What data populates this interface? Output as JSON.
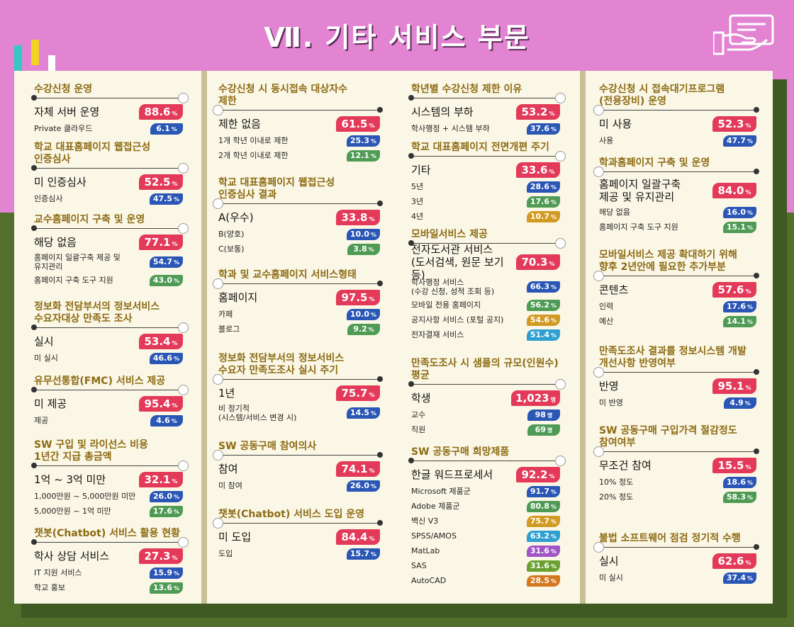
{
  "header": {
    "title": "Ⅶ. 기타 서비스 부문"
  },
  "columns": [
    {
      "sections": [
        {
          "title": "수강신청 운영",
          "top": 18,
          "rows": [
            {
              "label": "자체 서버 운영",
              "value": "88.6",
              "color": "red",
              "main": true
            },
            {
              "label": "Private 클라우드",
              "value": "6.1",
              "color": "blue"
            }
          ]
        },
        {
          "title": "학교 대표홈페이지 웹접근성\n인증심사",
          "top": 100,
          "rows": [
            {
              "label": "미 인증심사",
              "value": "52.5",
              "color": "red",
              "main": true
            },
            {
              "label": "인증심사",
              "value": "47.5",
              "color": "blue"
            }
          ]
        },
        {
          "title": "교수홈페이지 구축 및 운영",
          "top": 202,
          "rows": [
            {
              "label": "해당 없음",
              "value": "77.1",
              "color": "red",
              "main": true
            },
            {
              "label": "홈페이지 일괄구축 제공 및\n유지관리",
              "value": "54.7",
              "color": "blue"
            },
            {
              "label": "홈페이지 구축 도구 지원",
              "value": "43.0",
              "color": "green"
            }
          ]
        },
        {
          "title": "정보화 전담부서의 정보서비스\n수요자대상 만족도 조사",
          "top": 325,
          "rows": [
            {
              "label": "실시",
              "value": "53.4",
              "color": "red",
              "main": true
            },
            {
              "label": "미 실시",
              "value": "46.6",
              "color": "blue"
            }
          ]
        },
        {
          "title": "유무선통합(FMC) 서비스 제공",
          "top": 430,
          "rows": [
            {
              "label": "미 제공",
              "value": "95.4",
              "color": "red",
              "main": true
            },
            {
              "label": "제공",
              "value": "4.6",
              "color": "blue"
            }
          ]
        },
        {
          "title": "SW 구입 및 라이선스 비용\n1년간 지급 총금액",
          "top": 520,
          "rows": [
            {
              "label": "1억 ~ 3억 미만",
              "value": "32.1",
              "color": "red",
              "main": true
            },
            {
              "label": "1,000만원 ~ 5,000만원 미만",
              "value": "26.0",
              "color": "blue"
            },
            {
              "label": "5,000만원 ~ 1억 미만",
              "value": "17.6",
              "color": "green"
            }
          ]
        },
        {
          "title": "챗봇(Chatbot) 서비스 활용 현황",
          "top": 645,
          "rows": [
            {
              "label": "학사 상담 서비스",
              "value": "27.3",
              "color": "red",
              "main": true
            },
            {
              "label": "IT 지원 서비스",
              "value": "15.9",
              "color": "blue"
            },
            {
              "label": "학교 홍보",
              "value": "13.6",
              "color": "green"
            }
          ]
        }
      ]
    },
    {
      "sections": [
        {
          "title": "수강신청 시 동시접속 대상자수\n제한",
          "top": 18,
          "rows": [
            {
              "label": "제한 없음",
              "value": "61.5",
              "color": "red",
              "main": true
            },
            {
              "label": "1개 학년 이내로 제한",
              "value": "25.3",
              "color": "blue"
            },
            {
              "label": "2개 학년 이내로 제한",
              "value": "12.1",
              "color": "green"
            }
          ]
        },
        {
          "title": "학교 대표홈페이지 웹접근성\n인증심사 결과",
          "top": 150,
          "rows": [
            {
              "label": "A(우수)",
              "value": "33.8",
              "color": "red",
              "main": true
            },
            {
              "label": "B(양호)",
              "value": "10.0",
              "color": "blue"
            },
            {
              "label": "C(보통)",
              "value": "3.8",
              "color": "green"
            }
          ]
        },
        {
          "title": "학과 및 교수홈페이지 서비스형태",
          "top": 280,
          "rows": [
            {
              "label": "홈페이지",
              "value": "97.5",
              "color": "red",
              "main": true
            },
            {
              "label": "카페",
              "value": "10.0",
              "color": "blue"
            },
            {
              "label": "블로그",
              "value": "9.2",
              "color": "green"
            }
          ]
        },
        {
          "title": "정보화 전담부서의 정보서비스\n수요자 만족도조사 실시 주기",
          "top": 398,
          "rows": [
            {
              "label": "1년",
              "value": "75.7",
              "color": "red",
              "main": true
            },
            {
              "label": "비 정기적\n(시스템/서비스 변경 시)",
              "value": "14.5",
              "color": "blue"
            }
          ]
        },
        {
          "title": "SW 공동구매 참여의사",
          "top": 522,
          "rows": [
            {
              "label": "참여",
              "value": "74.1",
              "color": "red",
              "main": true
            },
            {
              "label": "미 참여",
              "value": "26.0",
              "color": "blue"
            }
          ]
        },
        {
          "title": "챗봇(Chatbot) 서비스 도입 운영",
          "top": 618,
          "rows": [
            {
              "label": "미 도입",
              "value": "84.4",
              "color": "red",
              "main": true
            },
            {
              "label": "도입",
              "value": "15.7",
              "color": "blue"
            }
          ]
        }
      ]
    },
    {
      "sections": [
        {
          "title": "학년별 수강신청 제한 이유",
          "top": 18,
          "rows": [
            {
              "label": "시스템의 부하",
              "value": "53.2",
              "color": "red",
              "main": true
            },
            {
              "label": "학사행정 + 시스템 부하",
              "value": "37.6",
              "color": "blue"
            }
          ]
        },
        {
          "title": "학교 대표홈페이지 전면개편 주기",
          "top": 100,
          "rows": [
            {
              "label": "기타",
              "value": "33.6",
              "color": "red",
              "main": true
            },
            {
              "label": "5년",
              "value": "28.6",
              "color": "blue"
            },
            {
              "label": "3년",
              "value": "17.6",
              "color": "green"
            },
            {
              "label": "4년",
              "value": "10.7",
              "color": "gold"
            }
          ]
        },
        {
          "title": "모바일서비스 제공",
          "top": 223,
          "rows": [
            {
              "label": "전자도서관 서비스\n(도서검색, 원문 보기 등)",
              "value": "70.3",
              "color": "red",
              "main": true,
              "tall": true
            },
            {
              "label": "학사행정 서비스\n(수강 신청, 성적 조회 등)",
              "value": "66.3",
              "color": "blue"
            },
            {
              "label": "모바일 전용 홈페이지",
              "value": "56.2",
              "color": "green"
            },
            {
              "label": "공지사항 서비스 (포털 공지)",
              "value": "54.6",
              "color": "gold"
            },
            {
              "label": "전자결재 서비스",
              "value": "51.4",
              "color": "cyan"
            }
          ]
        },
        {
          "title": "만족도조사 시 샘플의 규모(인원수)\n평균",
          "top": 405,
          "rows": [
            {
              "label": "학생",
              "value": "1,023",
              "color": "red",
              "main": true,
              "unit": "명"
            },
            {
              "label": "교수",
              "value": "98",
              "color": "blue",
              "unit": "명"
            },
            {
              "label": "직원",
              "value": "69",
              "color": "green",
              "unit": "명"
            }
          ]
        },
        {
          "title": "SW 공동구매 희망제품",
          "top": 530,
          "rows": [
            {
              "label": "한글 워드프로세서",
              "value": "92.2",
              "color": "red",
              "main": true
            },
            {
              "label": "Microsoft 제품군",
              "value": "91.7",
              "color": "blue"
            },
            {
              "label": "Adobe 제품군",
              "value": "80.8",
              "color": "green"
            },
            {
              "label": "백신 V3",
              "value": "75.7",
              "color": "gold"
            },
            {
              "label": "SPSS/AMOS",
              "value": "63.2",
              "color": "cyan"
            },
            {
              "label": "MatLab",
              "value": "31.6",
              "color": "purple"
            },
            {
              "label": "SAS",
              "value": "31.6",
              "color": "lime"
            },
            {
              "label": "AutoCAD",
              "value": "28.5",
              "color": "orange"
            }
          ]
        }
      ]
    },
    {
      "sections": [
        {
          "title": "수강신청 시 접속대기프로그램\n(전용장비) 운영",
          "top": 18,
          "rows": [
            {
              "label": "미 사용",
              "value": "52.3",
              "color": "red",
              "main": true
            },
            {
              "label": "사용",
              "value": "47.7",
              "color": "blue"
            }
          ]
        },
        {
          "title": "학과홈페이지 구축 및 운영",
          "top": 122,
          "rows": [
            {
              "label": "홈페이지 일괄구축\n제공 및 유지관리",
              "value": "84.0",
              "color": "red",
              "main": true,
              "tall": true
            },
            {
              "label": "해당 없음",
              "value": "16.0",
              "color": "blue"
            },
            {
              "label": "홈페이지 구축 도구 지원",
              "value": "15.1",
              "color": "green"
            }
          ]
        },
        {
          "title": "모바일서비스 제공 확대하기 위해\n향후 2년안에 필요한 추가부분",
          "top": 252,
          "rows": [
            {
              "label": "콘텐츠",
              "value": "57.6",
              "color": "red",
              "main": true
            },
            {
              "label": "인력",
              "value": "17.6",
              "color": "blue"
            },
            {
              "label": "예산",
              "value": "14.1",
              "color": "green"
            }
          ]
        },
        {
          "title": "만족도조사 결과를 정보시스템 개발\n개선사항 반영여부",
          "top": 388,
          "rows": [
            {
              "label": "반영",
              "value": "95.1",
              "color": "red",
              "main": true
            },
            {
              "label": "미 반영",
              "value": "4.9",
              "color": "blue"
            }
          ]
        },
        {
          "title": "SW 공동구매 구입가격 절감정도\n참여여부",
          "top": 500,
          "rows": [
            {
              "label": "무조건 참여",
              "value": "15.5",
              "color": "red",
              "main": true
            },
            {
              "label": "10% 정도",
              "value": "18.6",
              "color": "blue"
            },
            {
              "label": "20% 정도",
              "value": "58.3",
              "color": "green"
            }
          ]
        },
        {
          "title": "불법 소프트웨어 점검 정기적 수행",
          "top": 652,
          "rows": [
            {
              "label": "실시",
              "value": "62.6",
              "color": "red",
              "main": true
            },
            {
              "label": "미 실시",
              "value": "37.4",
              "color": "blue"
            }
          ]
        }
      ]
    }
  ]
}
